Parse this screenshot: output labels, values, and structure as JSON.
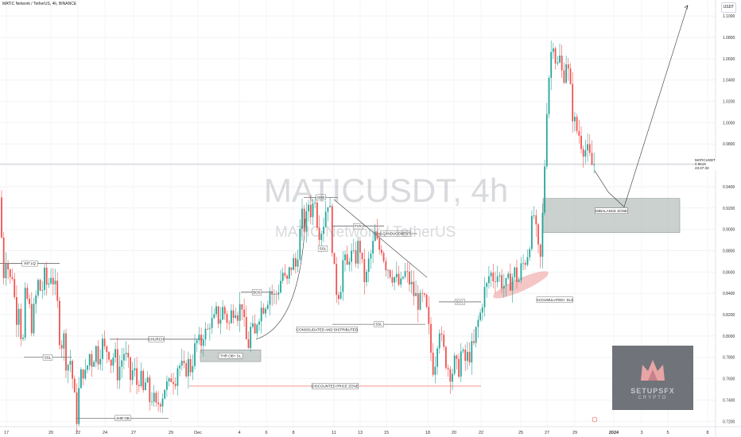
{
  "header": {
    "title": "MATIC Network / TetherUS, 4h, BINANCE"
  },
  "watermark": {
    "symbol": "MATICUSDT, 4h",
    "name": "MATIC Network / TetherUS"
  },
  "price_scale": {
    "unit": "USDT"
  },
  "last_price_tag": {
    "symbol": "MATICUSDT",
    "price": "0.9619",
    "timer": "23:47:33"
  },
  "logo": {
    "line1": "SETUPSFX",
    "line2": "CRYPTO"
  },
  "colors": {
    "up": "#26a69a",
    "down": "#ef5350",
    "zone": "#b8c2bf",
    "zone_border": "#8e9a97",
    "accum": "#f2b8b8"
  },
  "chart_data": {
    "type": "candlestick",
    "title": "MATIC Network / TetherUS, 4h, BINANCE",
    "ylim": [
      0.715,
      1.115
    ],
    "y_ticks": [
      "1.1000",
      "1.0800",
      "1.0600",
      "1.0400",
      "1.0200",
      "1.0000",
      "0.9800",
      "0.9600",
      "0.9400",
      "0.9200",
      "0.9000",
      "0.8800",
      "0.8600",
      "0.8400",
      "0.8200",
      "0.8000",
      "0.7800",
      "0.7600",
      "0.7400",
      "0.7200"
    ],
    "x_ticks": [
      "17",
      "20",
      "22",
      "24",
      "27",
      "29",
      "Dec",
      "4",
      "6",
      "8",
      "11",
      "13",
      "15",
      "18",
      "20",
      "22",
      "25",
      "27",
      "29",
      "2024",
      "3",
      "5",
      "8"
    ],
    "close_path": [
      [
        0,
        0.93
      ],
      [
        4,
        0.855
      ],
      [
        8,
        0.88
      ],
      [
        12,
        0.85
      ],
      [
        16,
        0.86
      ],
      [
        20,
        0.815
      ],
      [
        24,
        0.835
      ],
      [
        28,
        0.78
      ],
      [
        32,
        0.84
      ],
      [
        36,
        0.83
      ],
      [
        40,
        0.81
      ],
      [
        44,
        0.83
      ],
      [
        48,
        0.85
      ],
      [
        52,
        0.84
      ],
      [
        56,
        0.855
      ],
      [
        60,
        0.845
      ],
      [
        64,
        0.86
      ],
      [
        68,
        0.85
      ],
      [
        72,
        0.83
      ],
      [
        76,
        0.79
      ],
      [
        80,
        0.8
      ],
      [
        84,
        0.77
      ],
      [
        88,
        0.78
      ],
      [
        92,
        0.755
      ],
      [
        96,
        0.72
      ],
      [
        100,
        0.755
      ],
      [
        104,
        0.77
      ],
      [
        108,
        0.76
      ],
      [
        112,
        0.785
      ],
      [
        116,
        0.775
      ],
      [
        120,
        0.79
      ],
      [
        124,
        0.78
      ],
      [
        128,
        0.795
      ],
      [
        132,
        0.785
      ],
      [
        136,
        0.79
      ],
      [
        140,
        0.775
      ],
      [
        144,
        0.785
      ],
      [
        148,
        0.765
      ],
      [
        152,
        0.775
      ],
      [
        156,
        0.785
      ],
      [
        160,
        0.775
      ],
      [
        164,
        0.76
      ],
      [
        168,
        0.77
      ],
      [
        172,
        0.755
      ],
      [
        176,
        0.765
      ],
      [
        180,
        0.745
      ],
      [
        184,
        0.76
      ],
      [
        188,
        0.74
      ],
      [
        192,
        0.745
      ],
      [
        196,
        0.73
      ],
      [
        200,
        0.74
      ],
      [
        204,
        0.745
      ],
      [
        208,
        0.755
      ],
      [
        212,
        0.75
      ],
      [
        216,
        0.765
      ],
      [
        220,
        0.76
      ],
      [
        224,
        0.775
      ],
      [
        228,
        0.77
      ],
      [
        232,
        0.765
      ],
      [
        236,
        0.775
      ],
      [
        240,
        0.77
      ],
      [
        244,
        0.785
      ],
      [
        248,
        0.795
      ],
      [
        252,
        0.79
      ],
      [
        256,
        0.805
      ],
      [
        260,
        0.8
      ],
      [
        264,
        0.815
      ],
      [
        268,
        0.81
      ],
      [
        272,
        0.82
      ],
      [
        276,
        0.815
      ],
      [
        280,
        0.825
      ],
      [
        284,
        0.82
      ],
      [
        288,
        0.81
      ],
      [
        292,
        0.825
      ],
      [
        296,
        0.83
      ],
      [
        300,
        0.82
      ],
      [
        304,
        0.835
      ],
      [
        308,
        0.8
      ],
      [
        312,
        0.79
      ],
      [
        316,
        0.81
      ],
      [
        320,
        0.795
      ],
      [
        324,
        0.82
      ],
      [
        328,
        0.825
      ],
      [
        332,
        0.83
      ],
      [
        336,
        0.835
      ],
      [
        340,
        0.845
      ],
      [
        344,
        0.835
      ],
      [
        348,
        0.84
      ],
      [
        352,
        0.85
      ],
      [
        356,
        0.86
      ],
      [
        360,
        0.845
      ],
      [
        364,
        0.86
      ],
      [
        368,
        0.87
      ],
      [
        372,
        0.865
      ],
      [
        376,
        0.89
      ],
      [
        380,
        0.91
      ],
      [
        384,
        0.9
      ],
      [
        388,
        0.925
      ],
      [
        392,
        0.915
      ],
      [
        396,
        0.935
      ],
      [
        400,
        0.9
      ],
      [
        404,
        0.9
      ],
      [
        408,
        0.91
      ],
      [
        412,
        0.93
      ],
      [
        416,
        0.91
      ],
      [
        420,
        0.86
      ],
      [
        424,
        0.84
      ],
      [
        428,
        0.845
      ],
      [
        432,
        0.875
      ],
      [
        436,
        0.86
      ],
      [
        440,
        0.88
      ],
      [
        444,
        0.87
      ],
      [
        448,
        0.875
      ],
      [
        452,
        0.89
      ],
      [
        456,
        0.86
      ],
      [
        460,
        0.85
      ],
      [
        464,
        0.87
      ],
      [
        468,
        0.88
      ],
      [
        472,
        0.895
      ],
      [
        476,
        0.88
      ],
      [
        480,
        0.885
      ],
      [
        484,
        0.87
      ],
      [
        488,
        0.865
      ],
      [
        492,
        0.86
      ],
      [
        496,
        0.855
      ],
      [
        500,
        0.85
      ],
      [
        504,
        0.845
      ],
      [
        508,
        0.86
      ],
      [
        512,
        0.855
      ],
      [
        516,
        0.85
      ],
      [
        520,
        0.84
      ],
      [
        524,
        0.835
      ],
      [
        528,
        0.83
      ],
      [
        532,
        0.835
      ],
      [
        536,
        0.825
      ],
      [
        540,
        0.8
      ],
      [
        544,
        0.77
      ],
      [
        548,
        0.78
      ],
      [
        552,
        0.815
      ],
      [
        556,
        0.79
      ],
      [
        560,
        0.78
      ],
      [
        564,
        0.77
      ],
      [
        568,
        0.765
      ],
      [
        572,
        0.775
      ],
      [
        576,
        0.765
      ],
      [
        580,
        0.785
      ],
      [
        584,
        0.775
      ],
      [
        588,
        0.78
      ],
      [
        592,
        0.785
      ],
      [
        596,
        0.79
      ],
      [
        600,
        0.81
      ],
      [
        604,
        0.82
      ],
      [
        608,
        0.84
      ],
      [
        612,
        0.845
      ],
      [
        616,
        0.86
      ],
      [
        620,
        0.855
      ],
      [
        624,
        0.86
      ],
      [
        628,
        0.855
      ],
      [
        632,
        0.85
      ],
      [
        636,
        0.845
      ],
      [
        640,
        0.85
      ],
      [
        644,
        0.855
      ],
      [
        648,
        0.86
      ],
      [
        652,
        0.85
      ],
      [
        656,
        0.865
      ],
      [
        660,
        0.87
      ],
      [
        664,
        0.88
      ],
      [
        668,
        0.9
      ],
      [
        672,
        0.915
      ],
      [
        676,
        0.88
      ],
      [
        680,
        0.87
      ],
      [
        684,
        0.94
      ],
      [
        688,
        1.02
      ],
      [
        692,
        1.06
      ],
      [
        696,
        1.08
      ],
      [
        700,
        1.05
      ],
      [
        704,
        1.06
      ],
      [
        708,
        1.04
      ],
      [
        712,
        1.06
      ],
      [
        716,
        1.04
      ],
      [
        720,
        1.01
      ],
      [
        724,
        0.995
      ],
      [
        728,
        0.99
      ],
      [
        732,
        0.98
      ],
      [
        736,
        0.975
      ],
      [
        740,
        0.97
      ],
      [
        744,
        0.96
      ],
      [
        748,
        0.962
      ]
    ],
    "annotations": [
      {
        "type": "hline",
        "label": "INT LQ",
        "y": 0.868,
        "x1": 0,
        "x2": 75
      },
      {
        "type": "hline",
        "label": "SSL",
        "y": 0.78,
        "x1": 30,
        "x2": 90
      },
      {
        "type": "hline",
        "label": "4HR OB",
        "y": 0.723,
        "x1": 97,
        "x2": 212
      },
      {
        "type": "hline",
        "label": "CHURCH",
        "y": 0.797,
        "x1": 138,
        "x2": 255
      },
      {
        "type": "hline",
        "label": "BOS",
        "y": 0.841,
        "x1": 303,
        "x2": 343
      },
      {
        "type": "hline",
        "label": "SHS",
        "y": 0.93,
        "x1": 382,
        "x2": 425
      },
      {
        "type": "hline",
        "label": "FVG",
        "y": 0.903,
        "x1": 418,
        "x2": 483
      },
      {
        "type": "hline",
        "label": "LQ INDUCEMENT",
        "y": 0.896,
        "x1": 470,
        "x2": 525
      },
      {
        "type": "hline",
        "label": "SSL",
        "y": 0.882,
        "x1": 400,
        "x2": 412
      },
      {
        "type": "hline",
        "label": "SSL",
        "y": 0.811,
        "x1": 418,
        "x2": 535
      },
      {
        "type": "hline",
        "label": "BOS",
        "y": 0.832,
        "x1": 552,
        "x2": 605
      },
      {
        "type": "hline",
        "label": "DISCOUNTED PRICE ZONE",
        "y": 0.753,
        "x1": 238,
        "x2": 605,
        "color": "down"
      },
      {
        "type": "zone",
        "label": "THR OB+ SL",
        "y_top": 0.787,
        "y_bottom": 0.776,
        "x1": 252,
        "x2": 328
      },
      {
        "type": "zone",
        "label": "IMBALANCE ZONE",
        "y_top": 0.929,
        "y_bottom": 0.897,
        "x1": 683,
        "x2": 855
      },
      {
        "type": "text",
        "label": "CONSOLIDATED AND DISTRIBUTED",
        "y": 0.806,
        "x": 373
      },
      {
        "type": "text",
        "label": "ACCUMULATED+ SLS",
        "y": 0.834,
        "x": 675
      }
    ],
    "projection": [
      [
        748,
        0.955
      ],
      [
        765,
        0.935
      ],
      [
        785,
        0.921
      ],
      [
        865,
        1.11
      ]
    ]
  }
}
